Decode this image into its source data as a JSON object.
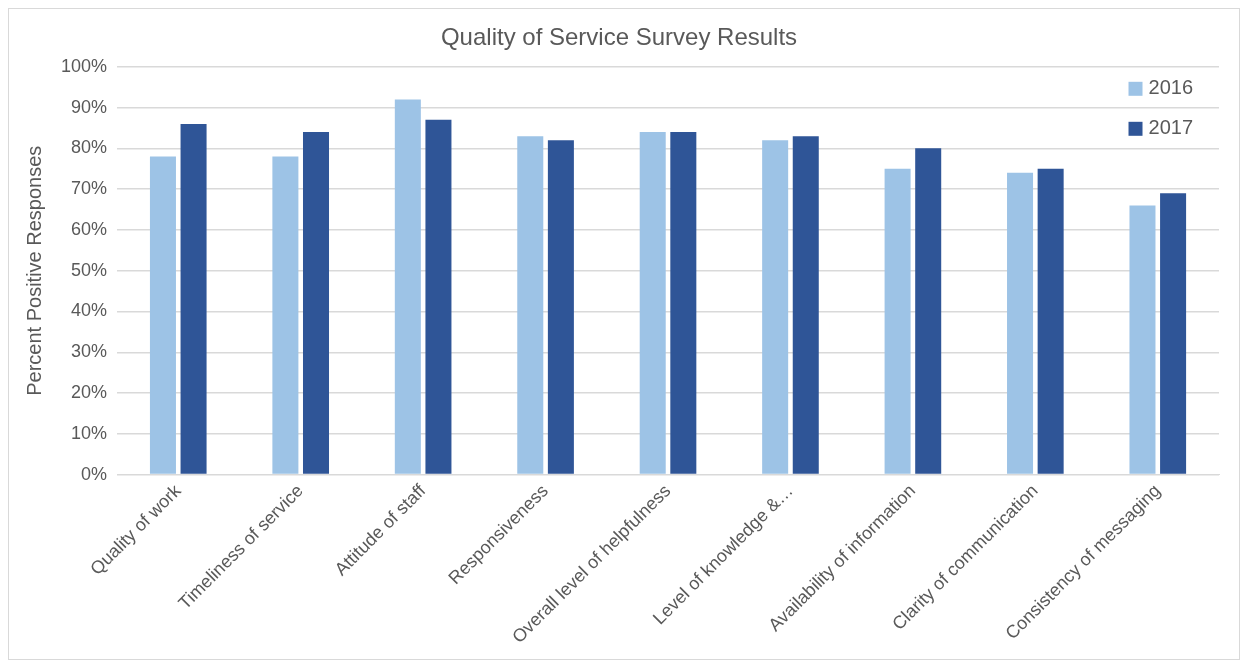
{
  "chart_data": {
    "type": "bar",
    "title": "Quality of Service Survey Results",
    "ylabel": "Percent Positive Responses",
    "categories": [
      "Quality of work",
      "Timeliness of service",
      "Attitude of staff",
      "Responsiveness",
      "Overall level of helpfulness",
      "Level of knowledge &…",
      "Availability of information",
      "Clarity of communication",
      "Consistency of messaging"
    ],
    "series": [
      {
        "name": "2016",
        "color": "#9dc3e6",
        "values": [
          78,
          78,
          92,
          83,
          84,
          82,
          75,
          74,
          66
        ]
      },
      {
        "name": "2017",
        "color": "#2f5597",
        "values": [
          86,
          84,
          87,
          82,
          84,
          83,
          80,
          75,
          69
        ]
      }
    ],
    "ylim": [
      0,
      100
    ],
    "yticks": [
      {
        "value": 0,
        "label": "0%"
      },
      {
        "value": 10,
        "label": "10%"
      },
      {
        "value": 20,
        "label": "20%"
      },
      {
        "value": 30,
        "label": "30%"
      },
      {
        "value": 40,
        "label": "40%"
      },
      {
        "value": 50,
        "label": "50%"
      },
      {
        "value": 60,
        "label": "60%"
      },
      {
        "value": 70,
        "label": "70%"
      },
      {
        "value": 80,
        "label": "80%"
      },
      {
        "value": 90,
        "label": "90%"
      },
      {
        "value": 100,
        "label": "100%"
      }
    ],
    "grid": "y",
    "legend": "top right"
  }
}
